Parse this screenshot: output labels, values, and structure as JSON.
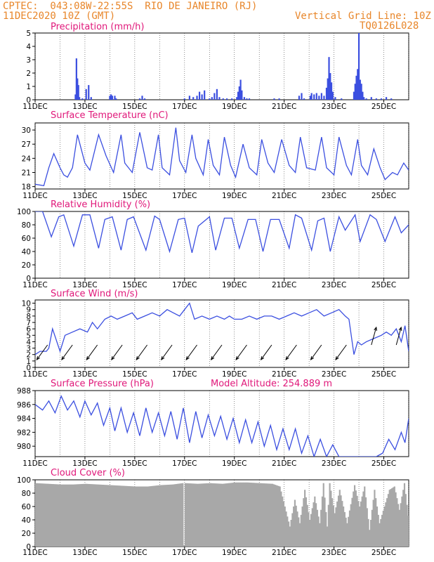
{
  "header": {
    "line1": "CPTEC:  043:08W-22:55S  RIO DE JANEIRO (RJ)",
    "line2": "11DEC2020 10Z (GMT)",
    "grid_note": "Vertical Grid Line: 10Z",
    "code": "TQ0126L028"
  },
  "colors": {
    "header": "#e8862a",
    "title": "#e0187a",
    "line": "#3b4fe0",
    "cloud": "#a8a8a8",
    "grid": "#444444"
  },
  "x_axis": {
    "range_days": [
      0,
      15
    ],
    "labels": [
      {
        "day": 0,
        "text": "11DEC"
      },
      {
        "day": 2,
        "text": "13DEC"
      },
      {
        "day": 4,
        "text": "15DEC"
      },
      {
        "day": 6,
        "text": "17DEC"
      },
      {
        "day": 8,
        "text": "19DEC"
      },
      {
        "day": 10,
        "text": "21DEC"
      },
      {
        "day": 12,
        "text": "23DEC"
      },
      {
        "day": 14,
        "text": "25DEC"
      }
    ]
  },
  "chart_data": [
    {
      "type": "bar",
      "title": "Precipitation (mm/h)",
      "ylim": [
        0,
        5
      ],
      "yticks": [
        0,
        1,
        2,
        3,
        4,
        5
      ],
      "x": [
        1.62,
        1.66,
        1.7,
        1.74,
        1.78,
        1.9,
        2.05,
        2.15,
        2.25,
        3.0,
        3.05,
        3.1,
        3.2,
        3.25,
        4.2,
        4.3,
        4.4,
        6.0,
        6.2,
        6.35,
        6.5,
        6.6,
        6.7,
        6.8,
        7.0,
        7.1,
        7.2,
        7.3,
        7.4,
        7.55,
        7.7,
        7.9,
        8.1,
        8.15,
        8.2,
        8.25,
        8.3,
        8.4,
        8.5,
        8.6,
        9.6,
        9.8,
        10.6,
        10.7,
        10.8,
        11.05,
        11.1,
        11.2,
        11.3,
        11.4,
        11.5,
        11.6,
        11.7,
        11.75,
        11.8,
        11.85,
        11.9,
        11.95,
        12.05,
        12.3,
        12.8,
        12.85,
        12.9,
        12.95,
        13.0,
        13.05,
        13.1,
        13.15,
        13.2,
        13.3,
        13.5,
        13.7,
        13.9,
        14.1,
        14.3
      ],
      "values": [
        0.4,
        3.1,
        1.6,
        1.1,
        0.2,
        0.1,
        0.8,
        1.1,
        0.2,
        0.3,
        0.4,
        0.3,
        0.3,
        0.1,
        0.1,
        0.3,
        0.1,
        0.1,
        0.3,
        0.2,
        0.3,
        0.6,
        0.4,
        0.7,
        0.1,
        0.2,
        0.5,
        0.8,
        0.2,
        0.1,
        0.1,
        0.1,
        0.2,
        0.6,
        1.0,
        1.5,
        0.7,
        0.2,
        0.1,
        0.1,
        0.1,
        0.1,
        0.3,
        0.5,
        0.1,
        0.3,
        0.5,
        0.4,
        0.5,
        0.3,
        0.5,
        0.3,
        0.9,
        1.6,
        3.2,
        2.0,
        1.3,
        0.6,
        0.2,
        0.1,
        0.6,
        1.2,
        1.8,
        2.3,
        5.0,
        1.5,
        1.2,
        0.6,
        0.2,
        0.1,
        0.2,
        0.1,
        0.1,
        0.2,
        0.1
      ]
    },
    {
      "type": "line",
      "title": "Surface Temperature (nC)",
      "ylim": [
        17.5,
        31.5
      ],
      "yticks": [
        18,
        21,
        24,
        27,
        30
      ],
      "x": [
        0,
        0.35,
        0.55,
        0.75,
        1.0,
        1.15,
        1.3,
        1.5,
        1.7,
        2.0,
        2.2,
        2.55,
        2.85,
        3.15,
        3.45,
        3.6,
        3.9,
        4.2,
        4.5,
        4.7,
        4.95,
        5.1,
        5.4,
        5.65,
        5.8,
        6.05,
        6.3,
        6.45,
        6.75,
        6.95,
        7.15,
        7.4,
        7.6,
        7.85,
        8.05,
        8.35,
        8.6,
        8.9,
        9.1,
        9.35,
        9.6,
        9.9,
        10.2,
        10.45,
        10.65,
        10.9,
        11.25,
        11.5,
        11.7,
        12.0,
        12.2,
        12.5,
        12.7,
        12.95,
        13.1,
        13.35,
        13.6,
        13.85,
        14.05,
        14.35,
        14.55,
        14.8,
        15.0
      ],
      "values": [
        18.5,
        18.2,
        22.0,
        25.0,
        22.0,
        20.5,
        20.0,
        22.0,
        29.0,
        23.0,
        21.5,
        29.0,
        24.5,
        21.0,
        29.0,
        23.0,
        21.0,
        29.5,
        22.0,
        21.5,
        29.0,
        22.0,
        20.5,
        30.5,
        23.5,
        21.0,
        29.0,
        24.0,
        20.5,
        28.0,
        22.5,
        20.5,
        28.5,
        22.5,
        20.0,
        27.0,
        22.0,
        20.5,
        28.0,
        23.0,
        21.0,
        28.0,
        22.5,
        21.0,
        28.5,
        22.0,
        21.5,
        28.5,
        22.0,
        20.5,
        28.5,
        22.5,
        20.5,
        28.0,
        22.5,
        20.5,
        26.0,
        22.0,
        19.5,
        21.0,
        20.5,
        23.0,
        21.5
      ]
    },
    {
      "type": "line",
      "title": "Relative Humidity (%)",
      "ylim": [
        0,
        100
      ],
      "yticks": [
        0,
        20,
        40,
        60,
        80,
        100
      ],
      "x": [
        0,
        0.3,
        0.65,
        0.95,
        1.15,
        1.55,
        1.9,
        2.2,
        2.55,
        2.8,
        3.1,
        3.45,
        3.7,
        3.95,
        4.45,
        4.8,
        5.0,
        5.4,
        5.75,
        6.0,
        6.3,
        6.55,
        7.0,
        7.25,
        7.6,
        7.9,
        8.2,
        8.55,
        8.85,
        9.15,
        9.45,
        9.8,
        10.2,
        10.45,
        10.7,
        11.1,
        11.35,
        11.6,
        11.85,
        12.2,
        12.45,
        12.85,
        13.05,
        13.45,
        13.7,
        14.05,
        14.45,
        14.7,
        15.0
      ],
      "values": [
        100,
        100,
        62,
        92,
        95,
        48,
        95,
        95,
        45,
        88,
        92,
        42,
        88,
        92,
        42,
        93,
        88,
        40,
        88,
        90,
        38,
        78,
        92,
        42,
        90,
        90,
        45,
        88,
        88,
        40,
        88,
        88,
        45,
        95,
        90,
        42,
        86,
        90,
        40,
        92,
        72,
        95,
        55,
        95,
        88,
        55,
        92,
        68,
        80
      ]
    },
    {
      "type": "line",
      "title": "Surface Wind (m/s)",
      "ylim": [
        0,
        10.5
      ],
      "yticks": [
        0,
        1,
        2,
        3,
        4,
        5,
        6,
        7,
        8,
        9,
        10
      ],
      "x": [
        0,
        0.2,
        0.45,
        0.55,
        0.7,
        1.0,
        1.2,
        1.5,
        1.8,
        2.1,
        2.3,
        2.5,
        2.8,
        3.05,
        3.3,
        3.6,
        3.9,
        4.1,
        4.4,
        4.7,
        5.0,
        5.3,
        5.55,
        5.8,
        6.0,
        6.2,
        6.4,
        6.7,
        7.0,
        7.3,
        7.6,
        7.8,
        8.0,
        8.3,
        8.6,
        8.9,
        9.2,
        9.5,
        9.8,
        10.1,
        10.4,
        10.7,
        11.0,
        11.3,
        11.6,
        11.9,
        12.2,
        12.45,
        12.6,
        12.8,
        12.95,
        13.1,
        13.3,
        13.6,
        13.9,
        14.1,
        14.3,
        14.5,
        14.7,
        14.85,
        15.0
      ],
      "values": [
        2.0,
        2.5,
        2.5,
        3.0,
        6.0,
        2.5,
        5.0,
        5.5,
        6.0,
        5.5,
        7.0,
        6.0,
        7.5,
        8.0,
        7.5,
        8.0,
        8.5,
        7.5,
        8.0,
        8.5,
        8.0,
        9.0,
        8.5,
        8.0,
        9.0,
        10.0,
        7.5,
        8.0,
        7.5,
        8.0,
        7.5,
        8.0,
        7.5,
        7.5,
        8.0,
        7.5,
        8.0,
        8.0,
        7.5,
        8.0,
        8.5,
        8.0,
        8.5,
        9.0,
        8.0,
        8.5,
        9.0,
        8.0,
        7.5,
        2.0,
        4.0,
        3.5,
        4.0,
        4.5,
        5.0,
        5.5,
        5.0,
        6.0,
        4.0,
        6.5,
        2.5
      ]
    },
    {
      "type": "line",
      "title": "Surface Pressure (hPa)",
      "annotation": "Model Altitude: 254.889 m",
      "ylim": [
        978.5,
        988
      ],
      "yticks": [
        980,
        982,
        984,
        986,
        988
      ],
      "x": [
        0,
        0.3,
        0.55,
        0.8,
        1.05,
        1.3,
        1.55,
        1.8,
        2.0,
        2.25,
        2.5,
        2.75,
        3.0,
        3.2,
        3.45,
        3.7,
        3.95,
        4.2,
        4.45,
        4.7,
        4.95,
        5.2,
        5.45,
        5.7,
        5.95,
        6.2,
        6.45,
        6.7,
        6.95,
        7.2,
        7.45,
        7.7,
        7.95,
        8.2,
        8.45,
        8.7,
        8.95,
        9.2,
        9.45,
        9.7,
        9.95,
        10.2,
        10.45,
        10.7,
        10.95,
        11.2,
        11.45,
        11.7,
        11.95,
        12.2,
        12.5,
        12.8,
        13.1,
        13.4,
        13.7,
        13.95,
        14.2,
        14.45,
        14.7,
        14.85,
        15.0
      ],
      "values": [
        986.0,
        985.2,
        986.5,
        984.8,
        987.2,
        985.2,
        986.5,
        984.2,
        986.5,
        984.5,
        986.2,
        983.0,
        985.5,
        982.2,
        985.5,
        982.0,
        984.8,
        981.5,
        985.5,
        982.0,
        984.8,
        981.5,
        985.0,
        981.0,
        985.5,
        980.5,
        985.0,
        981.2,
        984.5,
        981.5,
        984.3,
        981.0,
        984.0,
        980.5,
        983.8,
        980.5,
        983.5,
        980.0,
        983.0,
        979.5,
        982.5,
        979.5,
        982.5,
        979.0,
        981.5,
        978.5,
        981.0,
        978.5,
        980.2,
        978.5,
        978.5,
        978.5,
        978.5,
        978.5,
        978.5,
        979.0,
        981.0,
        979.5,
        982.0,
        980.5,
        984.0
      ]
    },
    {
      "type": "area",
      "title": "Cloud Cover (%)",
      "ylim": [
        0,
        100
      ],
      "yticks": [
        0,
        20,
        40,
        60,
        80,
        100
      ],
      "x": [
        0,
        0.5,
        1.0,
        1.5,
        2.0,
        2.5,
        3.0,
        3.5,
        4.0,
        4.5,
        5.0,
        5.5,
        5.9,
        5.95,
        6.0,
        6.5,
        7.0,
        7.5,
        8.0,
        8.5,
        9.0,
        9.5,
        9.8,
        10.0,
        10.2,
        10.4,
        10.6,
        10.8,
        11.0,
        11.2,
        11.4,
        11.55,
        11.7,
        11.8,
        12.0,
        12.2,
        12.5,
        12.8,
        13.0,
        13.2,
        13.4,
        13.6,
        13.8,
        14.0,
        14.2,
        14.4,
        14.6,
        14.8,
        15.0
      ],
      "values": [
        95,
        94,
        93,
        93,
        94,
        93,
        92,
        91,
        90,
        90,
        92,
        93,
        95,
        2,
        95,
        94,
        95,
        94,
        96,
        96,
        95,
        94,
        90,
        60,
        30,
        70,
        35,
        85,
        40,
        75,
        35,
        95,
        30,
        95,
        50,
        85,
        35,
        92,
        60,
        90,
        25,
        85,
        35,
        60,
        85,
        90,
        55,
        95,
        30
      ]
    }
  ]
}
